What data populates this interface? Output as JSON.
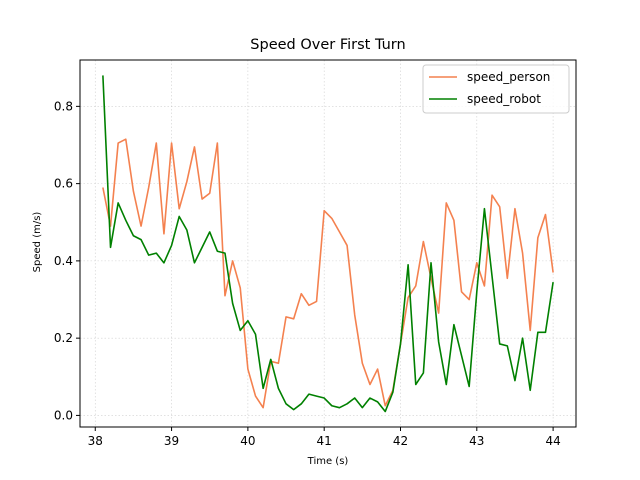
{
  "chart_data": {
    "type": "line",
    "title": "Speed Over First Turn",
    "xlabel": "Time (s)",
    "ylabel": "Speed (m/s)",
    "xlim": [
      37.8,
      44.3
    ],
    "ylim": [
      -0.03,
      0.92
    ],
    "xticks": [
      38,
      39,
      40,
      41,
      42,
      43,
      44
    ],
    "yticks": [
      0.0,
      0.2,
      0.4,
      0.6,
      0.8
    ],
    "grid": true,
    "legend_position": "top-right",
    "series": [
      {
        "name": "speed_person",
        "color": "#f4814f",
        "x": [
          38.1,
          38.2,
          38.3,
          38.4,
          38.5,
          38.6,
          38.7,
          38.8,
          38.9,
          39.0,
          39.1,
          39.2,
          39.3,
          39.4,
          39.5,
          39.6,
          39.7,
          39.8,
          39.9,
          40.0,
          40.1,
          40.2,
          40.3,
          40.4,
          40.5,
          40.6,
          40.7,
          40.8,
          40.9,
          41.0,
          41.1,
          41.2,
          41.3,
          41.4,
          41.5,
          41.6,
          41.7,
          41.8,
          41.9,
          42.0,
          42.1,
          42.2,
          42.3,
          42.4,
          42.5,
          42.6,
          42.7,
          42.8,
          42.9,
          43.0,
          43.1,
          43.2,
          43.3,
          43.4,
          43.5,
          43.6,
          43.7,
          43.8,
          43.9,
          44.0
        ],
        "y": [
          0.59,
          0.49,
          0.705,
          0.715,
          0.58,
          0.49,
          0.59,
          0.705,
          0.47,
          0.705,
          0.535,
          0.605,
          0.695,
          0.56,
          0.575,
          0.705,
          0.31,
          0.4,
          0.33,
          0.12,
          0.05,
          0.02,
          0.14,
          0.135,
          0.255,
          0.25,
          0.315,
          0.285,
          0.295,
          0.53,
          0.51,
          0.475,
          0.44,
          0.26,
          0.135,
          0.08,
          0.12,
          0.025,
          0.065,
          0.185,
          0.305,
          0.335,
          0.45,
          0.355,
          0.265,
          0.55,
          0.505,
          0.32,
          0.3,
          0.395,
          0.335,
          0.57,
          0.54,
          0.355,
          0.535,
          0.42,
          0.22,
          0.46,
          0.52,
          0.37
        ]
      },
      {
        "name": "speed_robot",
        "color": "#008000",
        "x": [
          38.1,
          38.2,
          38.3,
          38.4,
          38.5,
          38.6,
          38.7,
          38.8,
          38.9,
          39.0,
          39.1,
          39.2,
          39.3,
          39.4,
          39.5,
          39.6,
          39.7,
          39.8,
          39.9,
          40.0,
          40.1,
          40.2,
          40.3,
          40.4,
          40.5,
          40.6,
          40.7,
          40.8,
          40.9,
          41.0,
          41.1,
          41.2,
          41.3,
          41.4,
          41.5,
          41.6,
          41.7,
          41.8,
          41.9,
          42.0,
          42.1,
          42.2,
          42.3,
          42.4,
          42.5,
          42.6,
          42.7,
          42.8,
          42.9,
          43.0,
          43.1,
          43.2,
          43.3,
          43.4,
          43.5,
          43.6,
          43.7,
          43.8,
          43.9,
          44.0
        ],
        "y": [
          0.88,
          0.435,
          0.55,
          0.505,
          0.465,
          0.455,
          0.415,
          0.42,
          0.395,
          0.44,
          0.515,
          0.48,
          0.395,
          0.435,
          0.475,
          0.425,
          0.42,
          0.29,
          0.22,
          0.245,
          0.21,
          0.07,
          0.145,
          0.07,
          0.03,
          0.015,
          0.03,
          0.055,
          0.05,
          0.045,
          0.025,
          0.02,
          0.03,
          0.045,
          0.02,
          0.045,
          0.035,
          0.01,
          0.06,
          0.185,
          0.39,
          0.08,
          0.11,
          0.395,
          0.19,
          0.08,
          0.235,
          0.155,
          0.075,
          0.32,
          0.535,
          0.36,
          0.185,
          0.18,
          0.09,
          0.2,
          0.065,
          0.215,
          0.215,
          0.345
        ]
      }
    ]
  }
}
